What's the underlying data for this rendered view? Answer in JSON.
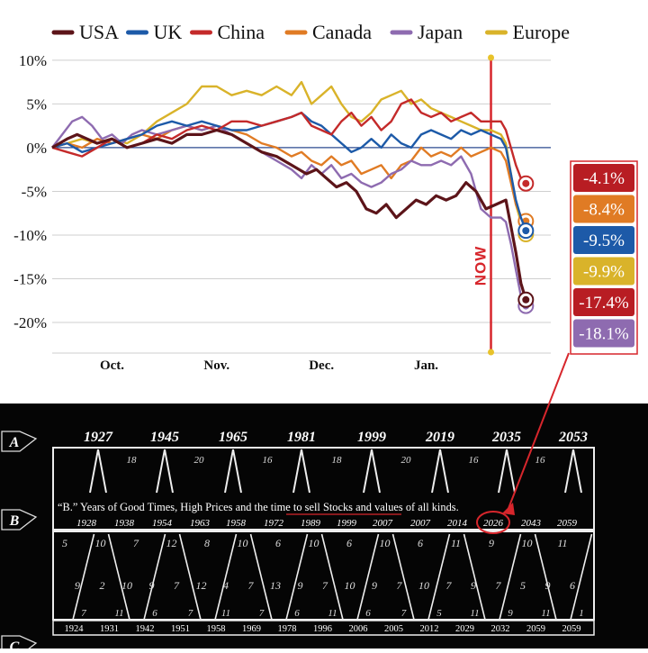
{
  "chart_data": {
    "type": "line",
    "title": "",
    "xlabel": "",
    "ylabel": "",
    "ylim": [
      -23.5,
      10.5
    ],
    "y_ticks": [
      10,
      5,
      0,
      -5,
      -10,
      -15,
      -20
    ],
    "y_tick_labels": [
      "10%",
      "5%",
      "0%",
      "-5%",
      "-10%",
      "-15%",
      "-20%"
    ],
    "x_range": [
      0,
      100
    ],
    "x_ticks": [
      {
        "x": 12,
        "label": "Oct."
      },
      {
        "x": 33,
        "label": "Nov."
      },
      {
        "x": 54,
        "label": "Dec."
      },
      {
        "x": 75,
        "label": "Jan."
      }
    ],
    "grid": true,
    "legend_position": "top",
    "now_marker": {
      "x": 88,
      "label": "NOW"
    },
    "series": [
      {
        "name": "USA",
        "color": "#5c1419",
        "final_label": "-17.4%",
        "label_color": "#b81d23",
        "points": [
          [
            0,
            0
          ],
          [
            3,
            1
          ],
          [
            5,
            1.5
          ],
          [
            7,
            1
          ],
          [
            9,
            0.5
          ],
          [
            12,
            1
          ],
          [
            15,
            0
          ],
          [
            18,
            0.5
          ],
          [
            21,
            1
          ],
          [
            24,
            0.5
          ],
          [
            27,
            1.5
          ],
          [
            30,
            1.5
          ],
          [
            33,
            2
          ],
          [
            36,
            1.5
          ],
          [
            39,
            0.5
          ],
          [
            42,
            -0.5
          ],
          [
            45,
            -1
          ],
          [
            48,
            -2
          ],
          [
            51,
            -3
          ],
          [
            53,
            -2.5
          ],
          [
            55,
            -3.5
          ],
          [
            57,
            -4.5
          ],
          [
            59,
            -4
          ],
          [
            61,
            -5
          ],
          [
            63,
            -7
          ],
          [
            65,
            -7.5
          ],
          [
            67,
            -6.5
          ],
          [
            69,
            -8
          ],
          [
            71,
            -7
          ],
          [
            73,
            -6
          ],
          [
            75,
            -6.5
          ],
          [
            77,
            -5.5
          ],
          [
            79,
            -6
          ],
          [
            81,
            -5.5
          ],
          [
            83,
            -4
          ],
          [
            85,
            -5
          ],
          [
            87,
            -7
          ],
          [
            89,
            -6.5
          ],
          [
            91,
            -6
          ],
          [
            92,
            -9
          ],
          [
            93,
            -12
          ],
          [
            94,
            -15.5
          ],
          [
            95,
            -17.4
          ]
        ]
      },
      {
        "name": "UK",
        "color": "#1d5aa8",
        "final_label": "-9.5%",
        "label_color": "#1d5aa8",
        "points": [
          [
            0,
            0
          ],
          [
            3,
            0.5
          ],
          [
            6,
            -0.5
          ],
          [
            9,
            0
          ],
          [
            12,
            0.5
          ],
          [
            15,
            1
          ],
          [
            18,
            1.5
          ],
          [
            21,
            2.5
          ],
          [
            24,
            3
          ],
          [
            27,
            2.5
          ],
          [
            30,
            3
          ],
          [
            33,
            2.5
          ],
          [
            36,
            2
          ],
          [
            39,
            2
          ],
          [
            42,
            2.5
          ],
          [
            45,
            3
          ],
          [
            48,
            3.5
          ],
          [
            50,
            4
          ],
          [
            52,
            3
          ],
          [
            54,
            2.5
          ],
          [
            57,
            1
          ],
          [
            60,
            -0.5
          ],
          [
            62,
            0
          ],
          [
            64,
            1
          ],
          [
            66,
            0
          ],
          [
            68,
            1.5
          ],
          [
            70,
            0.5
          ],
          [
            72,
            0
          ],
          [
            74,
            1.5
          ],
          [
            76,
            2
          ],
          [
            78,
            1.5
          ],
          [
            80,
            1
          ],
          [
            82,
            2
          ],
          [
            84,
            1.5
          ],
          [
            86,
            2
          ],
          [
            88,
            1.5
          ],
          [
            90,
            1
          ],
          [
            91,
            0
          ],
          [
            92,
            -3
          ],
          [
            93,
            -6
          ],
          [
            94,
            -8
          ],
          [
            95,
            -9.5
          ]
        ]
      },
      {
        "name": "China",
        "color": "#c42a2a",
        "final_label": "-4.1%",
        "label_color": "#b81d23",
        "points": [
          [
            0,
            0
          ],
          [
            3,
            -0.5
          ],
          [
            6,
            -1
          ],
          [
            9,
            0
          ],
          [
            12,
            1
          ],
          [
            15,
            0
          ],
          [
            18,
            0.5
          ],
          [
            21,
            1.5
          ],
          [
            24,
            1
          ],
          [
            27,
            2
          ],
          [
            30,
            2.5
          ],
          [
            33,
            2
          ],
          [
            36,
            3
          ],
          [
            39,
            3
          ],
          [
            42,
            2.5
          ],
          [
            45,
            3
          ],
          [
            48,
            3.5
          ],
          [
            50,
            4
          ],
          [
            52,
            2.5
          ],
          [
            54,
            2
          ],
          [
            56,
            1.5
          ],
          [
            58,
            3
          ],
          [
            60,
            4
          ],
          [
            62,
            2.5
          ],
          [
            64,
            3.5
          ],
          [
            66,
            2
          ],
          [
            68,
            3
          ],
          [
            70,
            5
          ],
          [
            72,
            5.5
          ],
          [
            74,
            4
          ],
          [
            76,
            3.5
          ],
          [
            78,
            4
          ],
          [
            80,
            3
          ],
          [
            82,
            3.5
          ],
          [
            84,
            4
          ],
          [
            86,
            3
          ],
          [
            88,
            3
          ],
          [
            90,
            3
          ],
          [
            91,
            2
          ],
          [
            92,
            0
          ],
          [
            93,
            -2
          ],
          [
            94,
            -3.5
          ],
          [
            95,
            -4.1
          ]
        ]
      },
      {
        "name": "Canada",
        "color": "#e07b24",
        "final_label": "-8.4%",
        "label_color": "#e07b24",
        "points": [
          [
            0,
            0
          ],
          [
            3,
            0.5
          ],
          [
            6,
            0
          ],
          [
            9,
            1
          ],
          [
            12,
            0.5
          ],
          [
            15,
            1
          ],
          [
            18,
            1.5
          ],
          [
            21,
            1
          ],
          [
            24,
            2
          ],
          [
            27,
            2.5
          ],
          [
            30,
            2
          ],
          [
            33,
            2.5
          ],
          [
            36,
            2
          ],
          [
            39,
            1.5
          ],
          [
            42,
            0.5
          ],
          [
            45,
            0
          ],
          [
            48,
            -1
          ],
          [
            50,
            -0.5
          ],
          [
            52,
            -1.5
          ],
          [
            54,
            -2
          ],
          [
            56,
            -1
          ],
          [
            58,
            -2
          ],
          [
            60,
            -1.5
          ],
          [
            62,
            -3
          ],
          [
            64,
            -2.5
          ],
          [
            66,
            -2
          ],
          [
            68,
            -3.5
          ],
          [
            70,
            -2
          ],
          [
            72,
            -1.5
          ],
          [
            74,
            0
          ],
          [
            76,
            -1
          ],
          [
            78,
            -0.5
          ],
          [
            80,
            -1
          ],
          [
            82,
            0
          ],
          [
            84,
            -1
          ],
          [
            86,
            -0.5
          ],
          [
            88,
            0
          ],
          [
            90,
            -0.5
          ],
          [
            91,
            -1.5
          ],
          [
            92,
            -4
          ],
          [
            93,
            -6.5
          ],
          [
            94,
            -7.8
          ],
          [
            95,
            -8.4
          ]
        ]
      },
      {
        "name": "Japan",
        "color": "#8e6bb0",
        "final_label": "-18.1%",
        "label_color": "#8e6bb0",
        "points": [
          [
            0,
            0
          ],
          [
            2,
            1.5
          ],
          [
            4,
            3
          ],
          [
            6,
            3.5
          ],
          [
            8,
            2.5
          ],
          [
            10,
            1
          ],
          [
            12,
            1.5
          ],
          [
            14,
            0.5
          ],
          [
            16,
            1.5
          ],
          [
            18,
            2
          ],
          [
            21,
            1.5
          ],
          [
            24,
            2
          ],
          [
            27,
            2.5
          ],
          [
            30,
            2
          ],
          [
            33,
            2.5
          ],
          [
            36,
            1.5
          ],
          [
            39,
            0.5
          ],
          [
            42,
            -0.5
          ],
          [
            45,
            -1.5
          ],
          [
            48,
            -2.5
          ],
          [
            50,
            -3.5
          ],
          [
            52,
            -2
          ],
          [
            54,
            -3
          ],
          [
            56,
            -2
          ],
          [
            58,
            -3.5
          ],
          [
            60,
            -3
          ],
          [
            62,
            -4
          ],
          [
            64,
            -4.5
          ],
          [
            66,
            -4
          ],
          [
            68,
            -3
          ],
          [
            70,
            -2.5
          ],
          [
            72,
            -1.5
          ],
          [
            74,
            -2
          ],
          [
            76,
            -2
          ],
          [
            78,
            -1.5
          ],
          [
            80,
            -2
          ],
          [
            82,
            -1
          ],
          [
            84,
            -3
          ],
          [
            86,
            -7
          ],
          [
            88,
            -8
          ],
          [
            90,
            -8
          ],
          [
            91,
            -8.5
          ],
          [
            92,
            -11
          ],
          [
            93,
            -14
          ],
          [
            94,
            -17
          ],
          [
            95,
            -18.1
          ]
        ]
      },
      {
        "name": "Europe",
        "color": "#d9b32a",
        "final_label": "-9.9%",
        "label_color": "#d9b32a",
        "points": [
          [
            0,
            0
          ],
          [
            3,
            0.5
          ],
          [
            6,
            1
          ],
          [
            9,
            0.5
          ],
          [
            12,
            1
          ],
          [
            15,
            0.5
          ],
          [
            18,
            1.5
          ],
          [
            21,
            3
          ],
          [
            24,
            4
          ],
          [
            27,
            5
          ],
          [
            30,
            7
          ],
          [
            33,
            7
          ],
          [
            36,
            6
          ],
          [
            39,
            6.5
          ],
          [
            42,
            6
          ],
          [
            45,
            7
          ],
          [
            48,
            6
          ],
          [
            50,
            7.5
          ],
          [
            52,
            5
          ],
          [
            54,
            6
          ],
          [
            56,
            7
          ],
          [
            58,
            5
          ],
          [
            60,
            3.5
          ],
          [
            62,
            3
          ],
          [
            64,
            4
          ],
          [
            66,
            5.5
          ],
          [
            68,
            6
          ],
          [
            70,
            6.5
          ],
          [
            72,
            5
          ],
          [
            74,
            5.5
          ],
          [
            76,
            4.5
          ],
          [
            78,
            4
          ],
          [
            80,
            3.5
          ],
          [
            82,
            3
          ],
          [
            84,
            2.5
          ],
          [
            86,
            2
          ],
          [
            88,
            2
          ],
          [
            90,
            1.5
          ],
          [
            91,
            0.5
          ],
          [
            92,
            -3
          ],
          [
            93,
            -6.5
          ],
          [
            94,
            -8.5
          ],
          [
            95,
            -9.9
          ]
        ]
      }
    ]
  },
  "cycle_chart": {
    "row_a": {
      "marker": "A",
      "years": [
        "1927",
        "1945",
        "1965",
        "1981",
        "1999",
        "2019",
        "2035",
        "2053"
      ],
      "intervals": [
        "18",
        "20",
        "16",
        "18",
        "20",
        "16",
        "16"
      ]
    },
    "row_b": {
      "marker": "B",
      "caption": "“B.” Years of Good Times, High Prices and the time to sell Stocks and values of all kinds.",
      "years": [
        "1928",
        "1938",
        "1954",
        "1963",
        "1958",
        "1972",
        "1989",
        "1999",
        "2007",
        "2007",
        "2014",
        "2026",
        "2043",
        "2059"
      ],
      "highlight": "2026"
    },
    "row_c": {
      "marker": "C",
      "top_numbers": [
        "5",
        "10",
        "7",
        "12",
        "8",
        "10",
        "6",
        "10",
        "6",
        "10",
        "6",
        "11",
        "9",
        "10",
        "11"
      ],
      "mid_numbers": [
        "9",
        "2",
        "10",
        "9",
        "7",
        "12",
        "4",
        "7",
        "13",
        "9",
        "7",
        "10",
        "9",
        "7",
        "10",
        "7",
        "9",
        "7",
        "5",
        "9",
        "6"
      ],
      "bottom_numbers": [
        "7",
        "11",
        "6",
        "7",
        "11",
        "7",
        "6",
        "11",
        "6",
        "7",
        "5",
        "11",
        "9",
        "11",
        "1"
      ],
      "years": [
        "1924",
        "1931",
        "1942",
        "1951",
        "1958",
        "1969",
        "1978",
        "1996",
        "2006",
        "2005",
        "2012",
        "2029",
        "2032",
        "2059",
        "2059"
      ]
    }
  }
}
